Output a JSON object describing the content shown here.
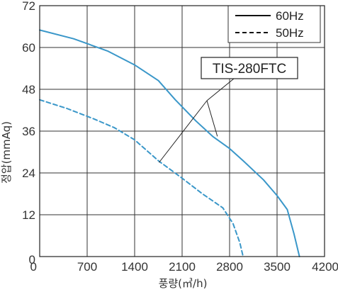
{
  "chart_data": {
    "type": "line",
    "xlabel": "풍량(㎥/h)",
    "ylabel": "정압(mmAq)",
    "xlim": [
      0,
      4200
    ],
    "ylim": [
      0,
      72
    ],
    "x_ticks": [
      0,
      700,
      1400,
      2100,
      2800,
      3500,
      4200
    ],
    "y_ticks": [
      0,
      12,
      24,
      36,
      48,
      60,
      72
    ],
    "grid": true,
    "legend_position": "top-right",
    "series": [
      {
        "name": "60Hz",
        "line_style": "solid",
        "color": "#3a97c9",
        "points": [
          [
            0,
            65
          ],
          [
            500,
            62.5
          ],
          [
            1000,
            59
          ],
          [
            1400,
            55
          ],
          [
            1750,
            50.5
          ],
          [
            2000,
            45
          ],
          [
            2300,
            39
          ],
          [
            2550,
            34.5
          ],
          [
            2800,
            31
          ],
          [
            3000,
            27.5
          ],
          [
            3300,
            22
          ],
          [
            3500,
            17.5
          ],
          [
            3650,
            13.5
          ],
          [
            3750,
            6.5
          ],
          [
            3830,
            0
          ]
        ]
      },
      {
        "name": "50Hz",
        "line_style": "dashed",
        "color": "#3a97c9",
        "points": [
          [
            0,
            45
          ],
          [
            400,
            42.5
          ],
          [
            800,
            39.5
          ],
          [
            1100,
            37
          ],
          [
            1400,
            33.5
          ],
          [
            1750,
            27.5
          ],
          [
            2100,
            22.5
          ],
          [
            2400,
            18
          ],
          [
            2700,
            14
          ],
          [
            2850,
            9.5
          ],
          [
            2950,
            4
          ],
          [
            3000,
            0
          ]
        ]
      }
    ],
    "annotation": {
      "text": "TIS-280FTC",
      "targets": [
        [
          1760,
          27
        ],
        [
          2620,
          34.5
        ]
      ]
    }
  }
}
